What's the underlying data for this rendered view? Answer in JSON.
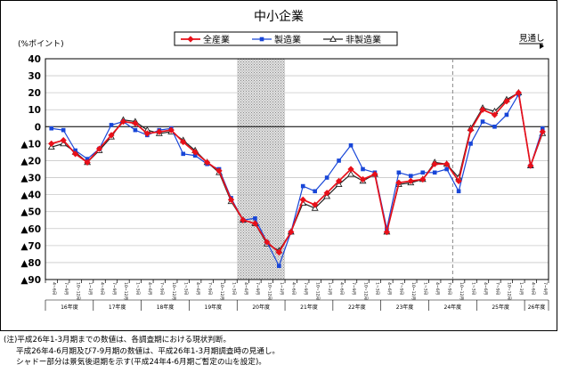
{
  "chart_data": {
    "type": "line",
    "title": "中小企業",
    "ylabel": "(%ポイント)",
    "forecast_label": "見通し",
    "ylim": [
      -90,
      40
    ],
    "yticks": [
      40,
      30,
      20,
      10,
      0,
      -10,
      -20,
      -30,
      -40,
      -50,
      -60,
      -70,
      -80,
      -90
    ],
    "ytick_labels": [
      "40",
      "30",
      "20",
      "10",
      "0",
      "▲10",
      "▲20",
      "▲30",
      "▲40",
      "▲50",
      "▲60",
      "▲70",
      "▲80",
      "▲90"
    ],
    "grid": "horizontal",
    "legend": "top-center",
    "x_quarters": [
      "4~6月",
      "7~9月",
      "10~12月",
      "1~3月",
      "4~6月",
      "7~9月",
      "10~12月",
      "1~3月",
      "4~6月",
      "7~9月",
      "10~12月",
      "1~3月",
      "4~6月",
      "7~9月",
      "10~12月",
      "1~3月",
      "4~6月",
      "7~9月",
      "10~12月",
      "1~3月",
      "4~6月",
      "7~9月",
      "10~12月",
      "1~3月",
      "4~6月",
      "7~9月",
      "10~12月",
      "1~3月",
      "4~6月",
      "7~9月",
      "10~12月",
      "1~3月",
      "4~6月",
      "7~9月",
      "10~12月",
      "1~3月",
      "4~6月",
      "7~9月",
      "10~12月",
      "1~3月",
      "4~6月",
      "7~9月"
    ],
    "x_years": [
      "16年度",
      "17年度",
      "18年度",
      "19年度",
      "20年度",
      "21年度",
      "22年度",
      "23年度",
      "24年度",
      "25年度",
      "26年度"
    ],
    "shaded_region": {
      "from": 16,
      "to": 20
    },
    "forecast_divider": 34,
    "series": [
      {
        "name": "全産業",
        "color": "#e8101a",
        "marker": "diamond",
        "values": [
          -10,
          -8,
          -16,
          -21,
          -13,
          -5,
          3,
          2,
          -4,
          -3,
          -2,
          -9,
          -15,
          -21,
          -26,
          -43,
          -55,
          -57,
          -68,
          -74,
          -62,
          -43,
          -46,
          -39,
          -32,
          -25,
          -31,
          -28,
          -62,
          -33,
          -32,
          -31,
          -22,
          -22,
          -32,
          -2,
          10,
          7,
          15,
          20,
          -23,
          -3
        ]
      },
      {
        "name": "製造業",
        "color": "#1846d8",
        "marker": "square",
        "values": [
          -1,
          -2,
          -14,
          -19,
          -13,
          1,
          3,
          -2,
          -5,
          -2,
          -1,
          -16,
          -17,
          -22,
          -25,
          -42,
          -55,
          -54,
          -68,
          -82,
          -62,
          -35,
          -38,
          -30,
          -20,
          -11,
          -25,
          -27,
          -60,
          -27,
          -29,
          -27,
          -27,
          -25,
          -38,
          -10,
          3,
          0,
          7,
          19,
          -23,
          -1
        ]
      },
      {
        "name": "非製造業",
        "color": "#222222",
        "marker": "triangle",
        "values": [
          -12,
          -10,
          -15,
          -21,
          -14,
          -6,
          4,
          3,
          -2,
          -4,
          -3,
          -8,
          -14,
          -21,
          -27,
          -44,
          -55,
          -57,
          -69,
          -73,
          -62,
          -45,
          -48,
          -41,
          -34,
          -28,
          -32,
          -28,
          -62,
          -34,
          -33,
          -31,
          -21,
          -22,
          -30,
          -1,
          11,
          9,
          16,
          20,
          -23,
          -4
        ]
      }
    ]
  },
  "notes": [
    "(注)平成26年1-3月期までの数値は、各調査期における現状判断。",
    "平成26年4-6月期及び7-9月期の数値は、平成26年1-3月期調査時の見通し。",
    "シャドー部分は景気後退期を示す(平成24年4-6月期ご暫定の山を設定)。"
  ]
}
